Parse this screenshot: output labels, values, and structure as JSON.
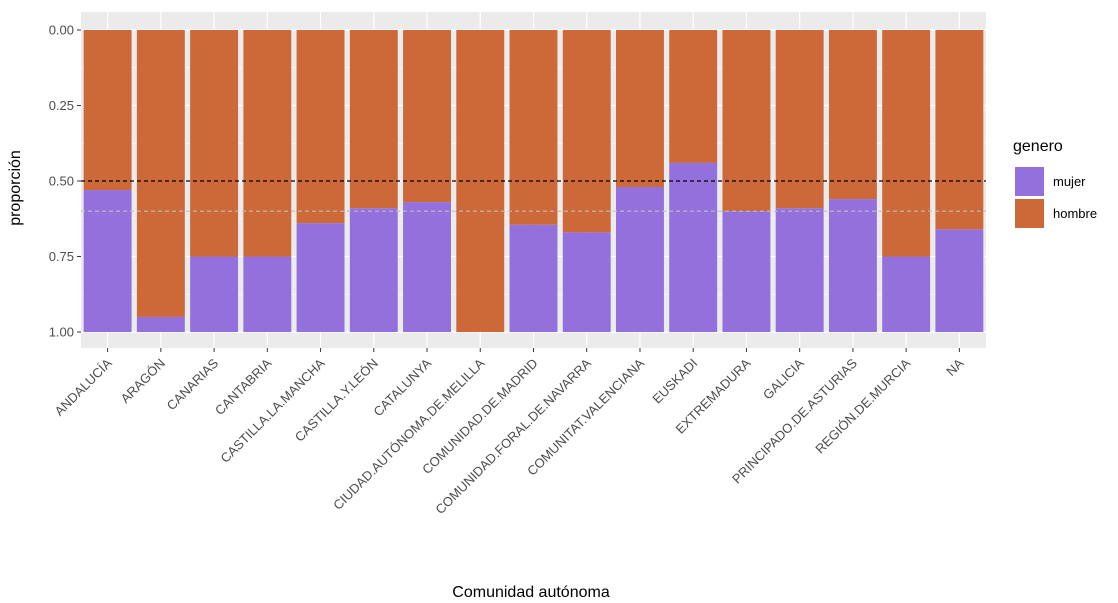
{
  "chart_data": {
    "type": "bar",
    "stacked": true,
    "xlabel": "Comunidad autónoma",
    "ylabel": "proporción",
    "y_reversed": true,
    "ylim": [
      0,
      1
    ],
    "yticks": [
      "0.00",
      "0.25",
      "0.50",
      "0.75",
      "1.00"
    ],
    "ytick_values": [
      0,
      0.25,
      0.5,
      0.75,
      1
    ],
    "categories": [
      "ANDALUCÍA",
      "ARAGÓN",
      "CANARIAS",
      "CANTABRIA",
      "CASTILLA.LA.MANCHA",
      "CASTILLA.Y.LEÓN",
      "CATALUNYA",
      "CIUDAD.AUTÓNOMA.DE.MELILLA",
      "COMUNIDAD.DE.MADRID",
      "COMUNIDAD.FORAL.DE.NAVARRA",
      "COMUNITAT.VALENCIANA",
      "EUSKADI",
      "EXTREMADURA",
      "GALICIA",
      "PRINCIPADO.DE.ASTURIAS",
      "REGIÓN.DE.MURCIA",
      "NA"
    ],
    "series": [
      {
        "name": "mujer",
        "color": "#9370DB",
        "values": [
          0.47,
          0.05,
          0.25,
          0.25,
          0.36,
          0.41,
          0.43,
          0.0,
          0.355,
          0.33,
          0.48,
          0.56,
          0.4,
          0.41,
          0.44,
          0.25,
          0.34
        ]
      },
      {
        "name": "hombre",
        "color": "#CD6839",
        "values": [
          0.53,
          0.95,
          0.75,
          0.75,
          0.64,
          0.59,
          0.57,
          1.0,
          0.645,
          0.67,
          0.52,
          0.44,
          0.6,
          0.59,
          0.56,
          0.75,
          0.66
        ]
      }
    ],
    "reference_lines": [
      {
        "y": 0.5,
        "style": "dashed",
        "color": "#000000"
      },
      {
        "y": 0.6,
        "style": "dashed",
        "color": "#BEBEBE"
      }
    ],
    "grid": true,
    "legend": {
      "title": "genero",
      "placement": "right"
    }
  }
}
